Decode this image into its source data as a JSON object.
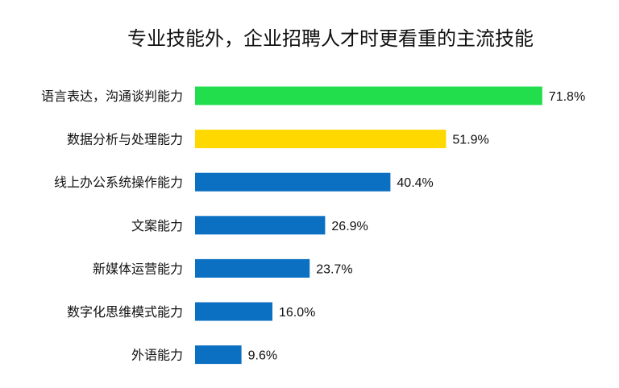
{
  "chart_data": {
    "type": "bar",
    "orientation": "horizontal",
    "title": "专业技能外，企业招聘人才时更看重的主流技能",
    "categories": [
      "语言表达，沟通谈判能力",
      "数据分析与处理能力",
      "线上办公系统操作能力",
      "文案能力",
      "新媒体运营能力",
      "数字化思维模式能力",
      "外语能力"
    ],
    "values": [
      71.8,
      51.9,
      40.4,
      26.9,
      23.7,
      16.0,
      9.6
    ],
    "value_labels": [
      "71.8%",
      "51.9%",
      "40.4%",
      "26.9%",
      "23.7%",
      "16.0%",
      "9.6%"
    ],
    "unit": "%",
    "colors": [
      "#22dd4c",
      "#ffd800",
      "#0b6fc2",
      "#0b6fc2",
      "#0b6fc2",
      "#0b6fc2",
      "#0b6fc2"
    ],
    "xlim": [
      0,
      100
    ],
    "grid": false,
    "legend": "none"
  }
}
